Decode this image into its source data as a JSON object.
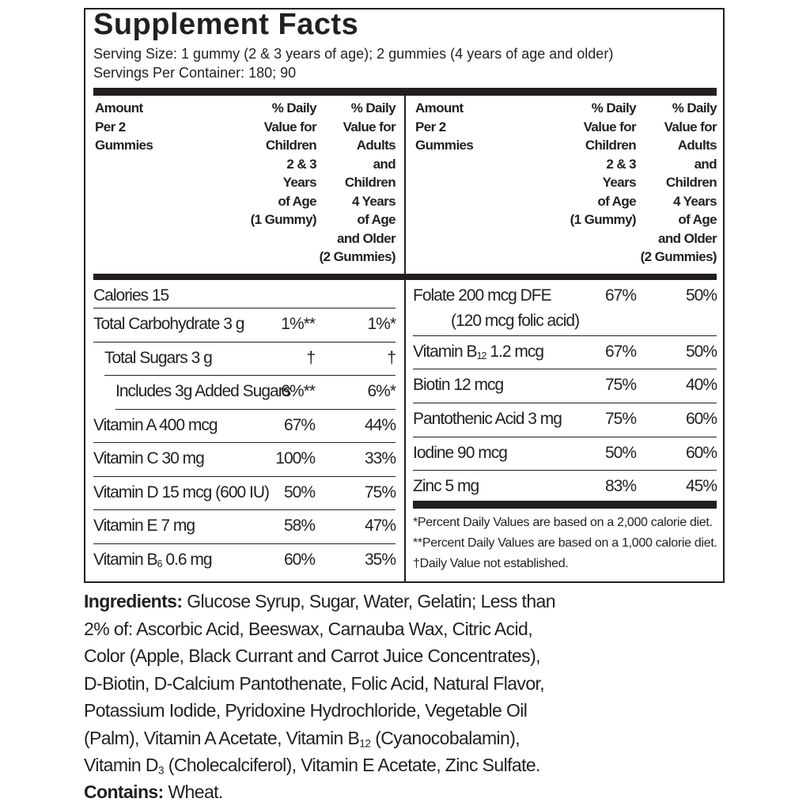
{
  "title": "Supplement Facts",
  "serving_size": "Serving Size:  1 gummy (2 & 3 years of age); 2 gummies (4 years of age and older)",
  "servings_per_container": "Servings Per Container:  180; 90",
  "header": {
    "amount": [
      "Amount",
      "Per 2",
      "Gummies"
    ],
    "children": [
      "% Daily",
      "Value for",
      "Children",
      "2 & 3",
      "Years",
      "of Age",
      "(1 Gummy)"
    ],
    "adults": [
      "% Daily",
      "Value for",
      "Adults",
      "and",
      "Children",
      "4 Years",
      "of Age",
      "and Older",
      "(2 Gummies)"
    ]
  },
  "left_rows": [
    {
      "name": [
        {
          "text": "Calories 15"
        }
      ]
    },
    {
      "name": [
        {
          "text": "Total Carbohydrate 3 g"
        }
      ],
      "children": "1%**",
      "adults": "1%*"
    },
    {
      "name": [
        {
          "text": "Total Sugars 3 g"
        }
      ],
      "children": "†",
      "adults": "†"
    },
    {
      "name": [
        {
          "text": "Includes 3g Added Sugars"
        }
      ],
      "children": "6%**",
      "adults": "6%*"
    },
    {
      "name": [
        {
          "text": "Vitamin A 400 mcg"
        }
      ],
      "children": "67%",
      "adults": "44%"
    },
    {
      "name": [
        {
          "text": "Vitamin C 30 mg"
        }
      ],
      "children": "100%",
      "adults": "33%"
    },
    {
      "name": [
        {
          "text": "Vitamin D 15 mcg (600 IU)"
        }
      ],
      "children": "50%",
      "adults": "75%"
    },
    {
      "name": [
        {
          "text": "Vitamin E 7 mg"
        }
      ],
      "children": "58%",
      "adults": "47%"
    },
    {
      "name": [
        {
          "text": "Vitamin B"
        },
        {
          "sub": "6"
        },
        {
          "text": " 0.6 mg"
        }
      ],
      "children": "60%",
      "adults": "35%"
    }
  ],
  "right_rows": [
    {
      "name": [
        {
          "text": "Folate 200 mcg DFE"
        }
      ],
      "note": "(120 mcg folic acid)",
      "children": "67%",
      "adults": "50%"
    },
    {
      "name": [
        {
          "text": "Vitamin B"
        },
        {
          "sub": "12"
        },
        {
          "text": " 1.2 mcg"
        }
      ],
      "children": "67%",
      "adults": "50%"
    },
    {
      "name": [
        {
          "text": "Biotin 12 mcg"
        }
      ],
      "children": "75%",
      "adults": "40%"
    },
    {
      "name": [
        {
          "text": "Pantothenic Acid 3 mg"
        }
      ],
      "children": "75%",
      "adults": "60%"
    },
    {
      "name": [
        {
          "text": "Iodine 90 mcg"
        }
      ],
      "children": "50%",
      "adults": "60%"
    },
    {
      "name": [
        {
          "text": "Zinc 5 mg"
        }
      ],
      "children": "83%",
      "adults": "45%"
    }
  ],
  "footnotes": [
    "*Percent Daily Values are based on a 2,000 calorie diet.",
    "**Percent Daily Values are based on a 1,000 calorie diet.",
    "†Daily Value not established."
  ],
  "ingredients": {
    "label": "Ingredients:",
    "lines": [
      [
        {
          "text": " Glucose Syrup, Sugar, Water, Gelatin; Less than"
        }
      ],
      [
        {
          "text": "2% of: Ascorbic Acid, Beeswax, Carnauba Wax, Citric Acid,"
        }
      ],
      [
        {
          "text": "Color (Apple, Black Currant and Carrot Juice Concentrates),"
        }
      ],
      [
        {
          "text": "D-Biotin, D-Calcium Pantothenate, Folic Acid, Natural Flavor,"
        }
      ],
      [
        {
          "text": "Potassium Iodide, Pyridoxine Hydrochloride, Vegetable Oil"
        }
      ],
      [
        {
          "text": "(Palm), Vitamin A Acetate,  Vitamin B"
        },
        {
          "sub": "12"
        },
        {
          "text": " (Cyanocobalamin),"
        }
      ],
      [
        {
          "text": "Vitamin D"
        },
        {
          "sub": "3"
        },
        {
          "text": " (Cholecalciferol), Vitamin E Acetate, Zinc Sulfate."
        }
      ]
    ]
  },
  "contains": {
    "label": "Contains:",
    "text": " Wheat."
  }
}
